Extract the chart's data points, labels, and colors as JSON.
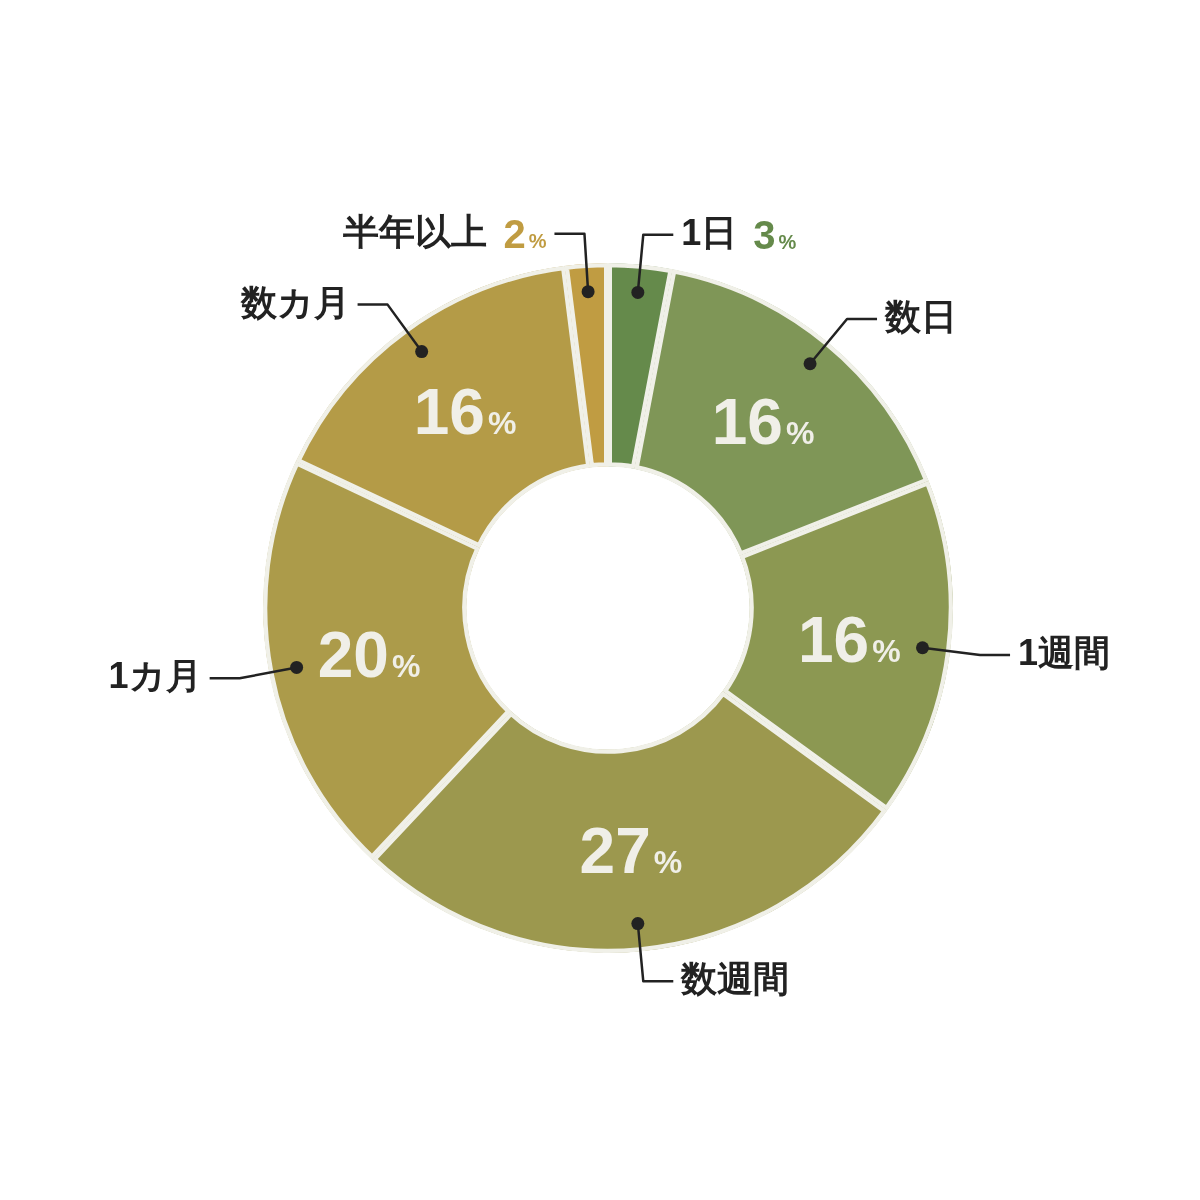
{
  "chart_data": {
    "type": "donut",
    "categories": [
      "1日",
      "数日",
      "1週間",
      "数週間",
      "1カ月",
      "数カ月",
      "半年以上"
    ],
    "values": [
      3,
      16,
      16,
      27,
      20,
      16,
      2
    ],
    "colors": [
      "#658a4b",
      "#7f9657",
      "#8c9852",
      "#9c984e",
      "#ac9b4a",
      "#b49b47",
      "#c09c42"
    ],
    "value_labels": [
      "3%",
      "16%",
      "16%",
      "27%",
      "20%",
      "16%",
      "2%"
    ],
    "legend": false
  }
}
